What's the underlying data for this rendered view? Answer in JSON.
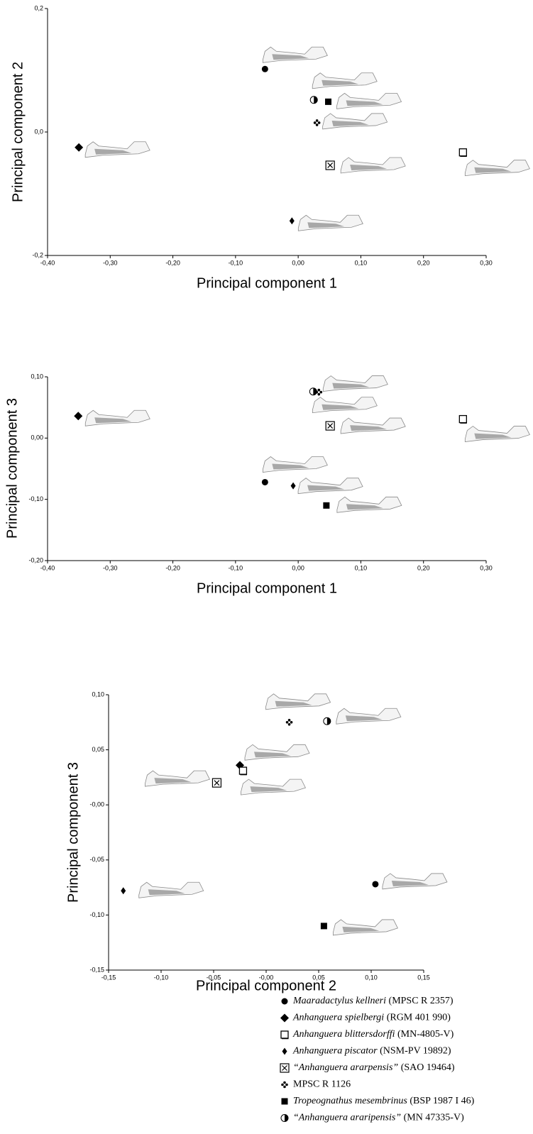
{
  "chart_data": [
    {
      "type": "scatter",
      "xlabel": "Principal component 1",
      "ylabel": "Principal component 2",
      "xlim": [
        -0.4,
        0.3
      ],
      "ylim": [
        -0.2,
        0.2
      ],
      "xticks": [
        {
          "value": -0.4,
          "label": "-0,40"
        },
        {
          "value": -0.3,
          "label": "-0,30"
        },
        {
          "value": -0.2,
          "label": "-0,20"
        },
        {
          "value": -0.1,
          "label": "-0,10"
        },
        {
          "value": 0,
          "label": "0,00"
        },
        {
          "value": 0.1,
          "label": "0,10"
        },
        {
          "value": 0.2,
          "label": "0,20"
        },
        {
          "value": 0.3,
          "label": "0,30"
        }
      ],
      "yticks": [
        {
          "value": -0.2,
          "label": "-0,2"
        },
        {
          "value": 0,
          "label": "0,0"
        },
        {
          "value": 0.2,
          "label": "0,2"
        }
      ],
      "series": [
        {
          "name": "Maaradactylus kellneri (MPSC R 2357)",
          "marker": "circle",
          "color": "#000000",
          "x": [
            -0.053
          ],
          "values": [
            0.102
          ]
        },
        {
          "name": "Anhanguera spielbergi (RGM 401 990)",
          "marker": "diamond",
          "color": "#000000",
          "x": [
            -0.35
          ],
          "values": [
            -0.025
          ]
        },
        {
          "name": "Anhanguera blittersdorffi (MN-4805-V)",
          "marker": "square-open",
          "color": "#000000",
          "x": [
            0.263
          ],
          "values": [
            -0.033
          ]
        },
        {
          "name": "Anhanguera piscator (NSM-PV 19892)",
          "marker": "diamond-small",
          "color": "#000000",
          "x": [
            -0.01
          ],
          "values": [
            -0.144
          ]
        },
        {
          "name": "“Anhanguera ararpensis” (SAO 19464)",
          "marker": "square-x",
          "color": "#000000",
          "x": [
            0.051
          ],
          "values": [
            -0.054
          ]
        },
        {
          "name": "MPSC R 1126",
          "marker": "cross-dots",
          "color": "#000000",
          "x": [
            0.03
          ],
          "values": [
            0.015
          ]
        },
        {
          "name": "Tropeognathus mesembrinus (BSP 1987 I 46)",
          "marker": "square",
          "color": "#000000",
          "x": [
            0.048
          ],
          "values": [
            0.049
          ]
        },
        {
          "name": "“Anhanguera araripensis” (MN 47335-V)",
          "marker": "circle-half",
          "color": "#000000",
          "x": [
            0.025
          ],
          "values": [
            0.052
          ]
        }
      ]
    },
    {
      "type": "scatter",
      "xlabel": "Principal component 1",
      "ylabel": "Principal component 3",
      "xlim": [
        -0.4,
        0.3
      ],
      "ylim": [
        -0.2,
        0.1
      ],
      "xticks": [
        {
          "value": -0.4,
          "label": "-0,40"
        },
        {
          "value": -0.3,
          "label": "-0,30"
        },
        {
          "value": -0.2,
          "label": "-0,20"
        },
        {
          "value": -0.1,
          "label": "-0,10"
        },
        {
          "value": 0,
          "label": "0,00"
        },
        {
          "value": 0.1,
          "label": "0,10"
        },
        {
          "value": 0.2,
          "label": "0,20"
        },
        {
          "value": 0.3,
          "label": "0,30"
        }
      ],
      "yticks": [
        {
          "value": -0.2,
          "label": "-0,20"
        },
        {
          "value": -0.1,
          "label": "-0,10"
        },
        {
          "value": 0,
          "label": "0,00"
        },
        {
          "value": 0.1,
          "label": "0,10"
        }
      ],
      "series": [
        {
          "marker": "circle",
          "color": "#000000",
          "x": [
            -0.053
          ],
          "values": [
            -0.072
          ]
        },
        {
          "marker": "diamond",
          "color": "#000000",
          "x": [
            -0.351
          ],
          "values": [
            0.036
          ]
        },
        {
          "marker": "square-open",
          "color": "#000000",
          "x": [
            0.263
          ],
          "values": [
            0.031
          ]
        },
        {
          "marker": "diamond-small",
          "color": "#000000",
          "x": [
            -0.008
          ],
          "values": [
            -0.078
          ]
        },
        {
          "marker": "square-x",
          "color": "#000000",
          "x": [
            0.051
          ],
          "values": [
            0.02
          ]
        },
        {
          "marker": "cross-dots",
          "color": "#000000",
          "x": [
            0.033
          ],
          "values": [
            0.075
          ]
        },
        {
          "marker": "square",
          "color": "#000000",
          "x": [
            0.045
          ],
          "values": [
            -0.11
          ]
        },
        {
          "marker": "circle-half",
          "color": "#000000",
          "x": [
            0.024
          ],
          "values": [
            0.076
          ]
        }
      ]
    },
    {
      "type": "scatter",
      "xlabel": "Principal component 2",
      "ylabel": "Principal component 3",
      "xlim": [
        -0.15,
        0.15
      ],
      "ylim": [
        -0.15,
        0.1
      ],
      "xticks": [
        {
          "value": -0.15,
          "label": "-0,15"
        },
        {
          "value": -0.1,
          "label": "-0,10"
        },
        {
          "value": -0.05,
          "label": "-0,05"
        },
        {
          "value": 0,
          "label": "-0,00"
        },
        {
          "value": 0.05,
          "label": "0,05"
        },
        {
          "value": 0.1,
          "label": "0,10"
        },
        {
          "value": 0.15,
          "label": "0,15"
        }
      ],
      "yticks": [
        {
          "value": -0.15,
          "label": "-0,15"
        },
        {
          "value": -0.1,
          "label": "-0,10"
        },
        {
          "value": -0.05,
          "label": "-0,05"
        },
        {
          "value": 0,
          "label": "-0,00"
        },
        {
          "value": 0.05,
          "label": "0,05"
        },
        {
          "value": 0.1,
          "label": "0,10"
        }
      ],
      "series": [
        {
          "marker": "circle",
          "color": "#000000",
          "x": [
            0.104
          ],
          "values": [
            -0.072
          ]
        },
        {
          "marker": "diamond",
          "color": "#000000",
          "x": [
            -0.025
          ],
          "values": [
            0.036
          ]
        },
        {
          "marker": "square-open",
          "color": "#000000",
          "x": [
            -0.022
          ],
          "values": [
            0.031
          ]
        },
        {
          "marker": "diamond-small",
          "color": "#000000",
          "x": [
            -0.136
          ],
          "values": [
            -0.078
          ]
        },
        {
          "marker": "square-x",
          "color": "#000000",
          "x": [
            -0.047
          ],
          "values": [
            0.02
          ]
        },
        {
          "marker": "cross-dots",
          "color": "#000000",
          "x": [
            0.022
          ],
          "values": [
            0.075
          ]
        },
        {
          "marker": "square",
          "color": "#000000",
          "x": [
            0.055
          ],
          "values": [
            -0.11
          ]
        },
        {
          "marker": "circle-half",
          "color": "#000000",
          "x": [
            0.058
          ],
          "values": [
            0.076
          ]
        }
      ]
    }
  ]
}
